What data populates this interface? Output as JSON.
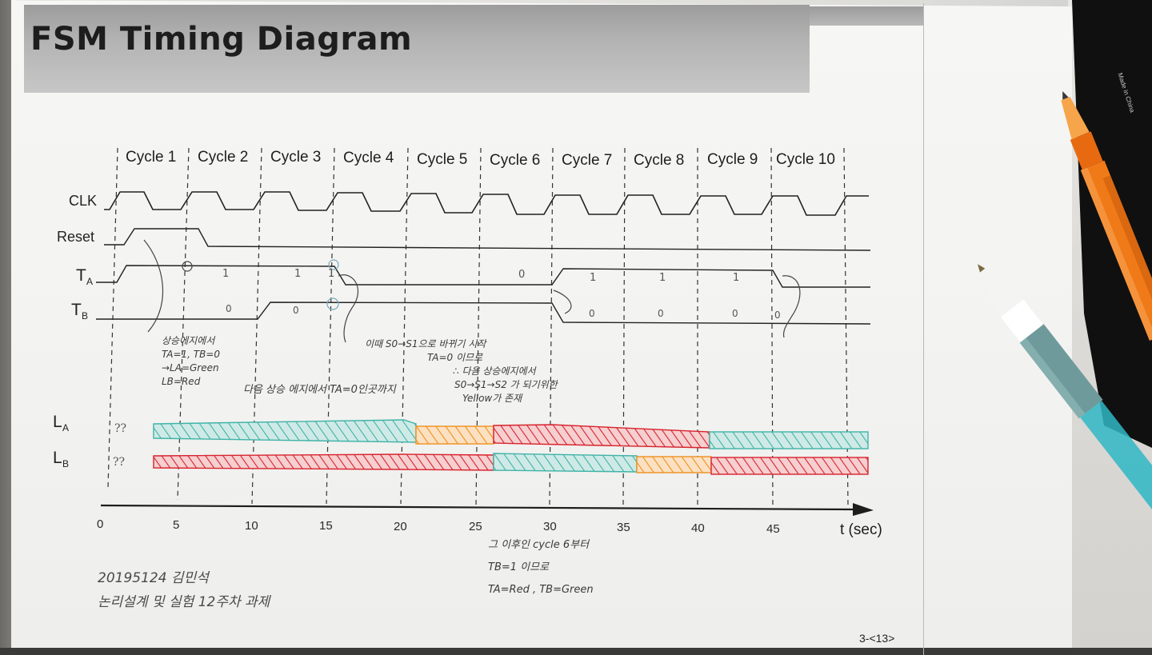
{
  "slide": {
    "title": "FSM Timing Diagram",
    "page_number": "3-<13>"
  },
  "diagram": {
    "cycles": [
      "Cycle 1",
      "Cycle 2",
      "Cycle 3",
      "Cycle 4",
      "Cycle 5",
      "Cycle 6",
      "Cycle 7",
      "Cycle 8",
      "Cycle 9",
      "Cycle 10"
    ],
    "signals": {
      "clk": "CLK",
      "reset": "Reset",
      "ta": "T",
      "ta_sub": "A",
      "tb": "T",
      "tb_sub": "B",
      "la": "L",
      "la_sub": "A",
      "lb": "L",
      "lb_sub": "B"
    },
    "time_axis": {
      "ticks": [
        "0",
        "5",
        "10",
        "15",
        "20",
        "25",
        "30",
        "35",
        "40",
        "45"
      ],
      "label": "t (sec)"
    },
    "ta_marks": [
      "1",
      "1",
      "1",
      "0",
      "1",
      "1",
      "1"
    ],
    "tb_marks": [
      "0",
      "0",
      "0",
      "0",
      "0",
      "0"
    ],
    "unknown_marks": [
      "??",
      "??"
    ],
    "light_colors": {
      "green": "#3fb3a8",
      "red": "#d8232e",
      "yellow": "#f0901e"
    }
  },
  "notes": {
    "note1": [
      "상승에지에서",
      "TA=1, TB=0",
      "→LA=Green",
      "LB=Red"
    ],
    "note2": "다음 상승 에지에서 TA=0인곳까지",
    "note3": [
      "이때 S0→S1으로 바뀌기 시작",
      "TA=0 이므로",
      "∴ 다음 상승에지에서",
      "S0→S1→S2 가 되기위한",
      "Yellow가 존재"
    ],
    "note4": [
      "그 이후인 cycle 6부터",
      "TB=1 이므로",
      "TA=Red ,  TB=Green"
    ],
    "signature": [
      "20195124 김민석",
      "논리설계 및 실험 12주차 과제"
    ]
  },
  "objects": {
    "pen1_label": "Made in China"
  }
}
